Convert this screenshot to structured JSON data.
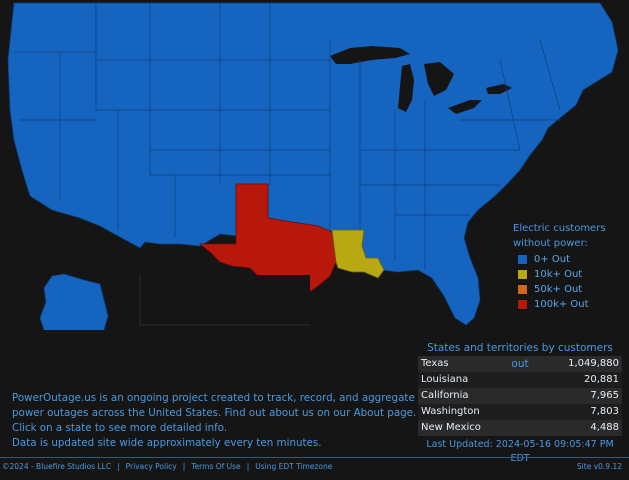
{
  "colors": {
    "background": "#151515",
    "accent": "#4a9ae0",
    "out_0": "#1565c0",
    "out_10k": "#b8a812",
    "out_50k": "#d0671a",
    "out_100k": "#b8180c"
  },
  "map": {
    "states_100k": [
      "Texas"
    ],
    "states_10k": [
      "Louisiana"
    ],
    "default_level": "0+ Out"
  },
  "legend": {
    "title_line1": "Electric customers",
    "title_line2": "without power:",
    "items": [
      {
        "label": "0+ Out",
        "color": "#1565c0"
      },
      {
        "label": "10k+ Out",
        "color": "#b8a812"
      },
      {
        "label": "50k+ Out",
        "color": "#d0671a"
      },
      {
        "label": "100k+ Out",
        "color": "#b8180c"
      }
    ]
  },
  "table": {
    "title": "States and territories by customers out",
    "rows": [
      {
        "state": "Texas",
        "count": "1,049,880"
      },
      {
        "state": "Louisiana",
        "count": "20,881"
      },
      {
        "state": "California",
        "count": "7,965"
      },
      {
        "state": "Washington",
        "count": "7,803"
      },
      {
        "state": "New Mexico",
        "count": "4,488"
      }
    ],
    "last_updated": "Last Updated: 2024-05-16 09:05:47 PM EDT"
  },
  "about": {
    "line1": "PowerOutage.us is an ongoing project created to track, record, and aggregate",
    "line2": "power outages across the United States. Find out about us on our About page.",
    "line3": "Click on a state to see more detailed info.",
    "line4": "Data is updated site wide approximately every ten minutes."
  },
  "footer": {
    "copyright": "©2024 - Bluefire Studios LLC",
    "privacy": "Privacy Policy",
    "terms": "Terms Of Use",
    "timezone": "Using EDT Timezone",
    "version": "Site v0.9.12"
  }
}
